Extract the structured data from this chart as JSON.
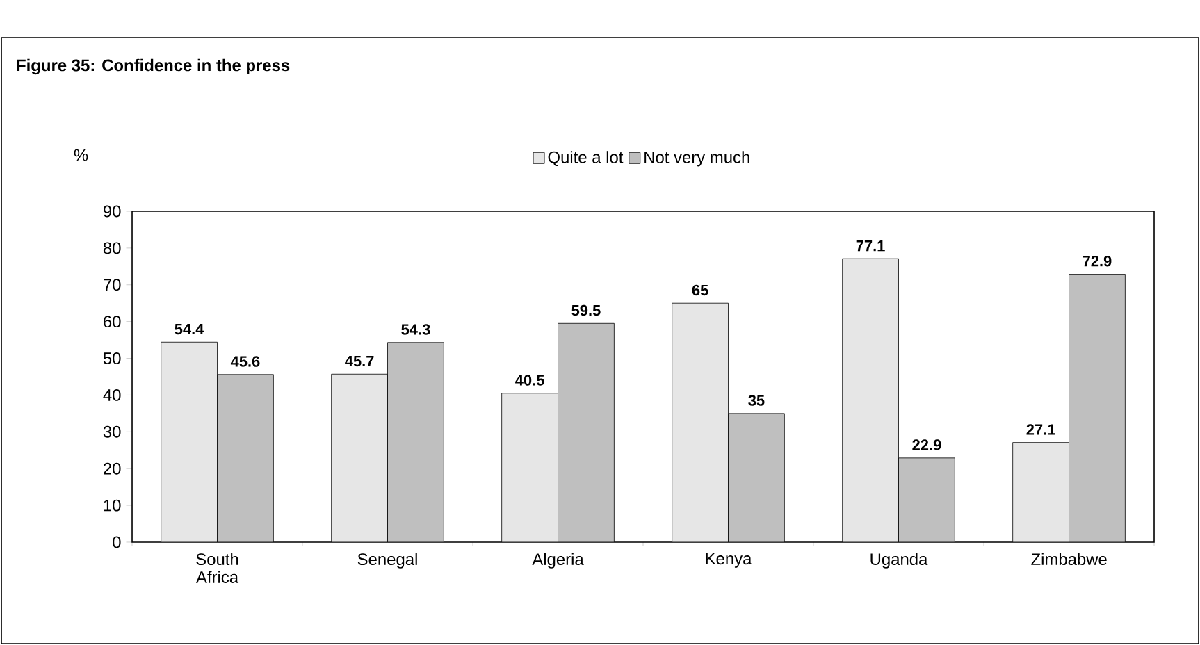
{
  "chart_data": {
    "type": "bar",
    "title": "Figure 35: Confidence in the press",
    "ylabel": "%",
    "categories": [
      "South Africa",
      "Senegal",
      "Algeria",
      "Kenya",
      "Uganda",
      "Zimbabwe"
    ],
    "series": [
      {
        "name": "Quite a lot",
        "color": "#e6e6e6",
        "values": [
          54.4,
          45.7,
          40.5,
          65,
          77.1,
          27.1
        ]
      },
      {
        "name": "Not very much",
        "color": "#bfbfbf",
        "values": [
          45.6,
          54.3,
          59.5,
          35,
          22.9,
          72.9
        ]
      }
    ],
    "ylim": [
      0,
      90
    ],
    "yticks": [
      0,
      10,
      20,
      30,
      40,
      50,
      60,
      70,
      80,
      90
    ],
    "data_labels": true,
    "legend": "top",
    "grid": false
  }
}
